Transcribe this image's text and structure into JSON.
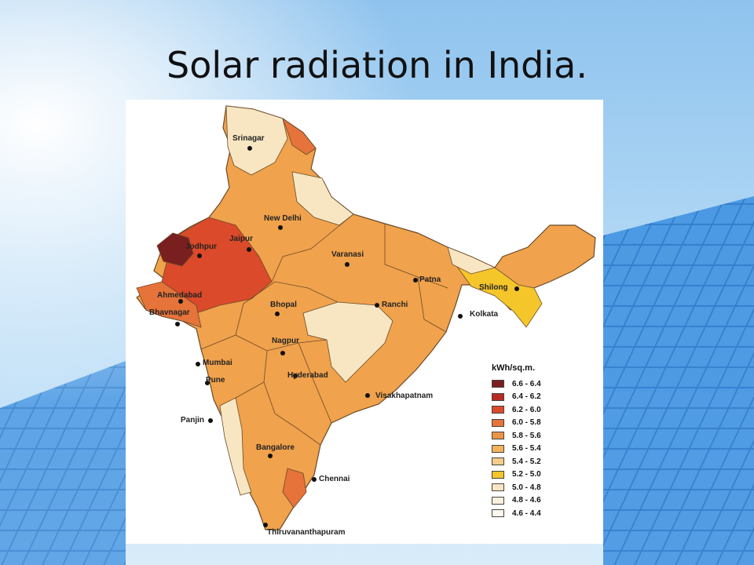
{
  "slide": {
    "title": "Solar radiation in India."
  },
  "map": {
    "cities": [
      {
        "name": "Srinagar"
      },
      {
        "name": "New Delhi"
      },
      {
        "name": "Jodhpur"
      },
      {
        "name": "Jaipur"
      },
      {
        "name": "Varanasi"
      },
      {
        "name": "Patna"
      },
      {
        "name": "Shilong"
      },
      {
        "name": "Ahmedabad"
      },
      {
        "name": "Bhopal"
      },
      {
        "name": "Ranchi"
      },
      {
        "name": "Bhavnagar"
      },
      {
        "name": "Kolkata"
      },
      {
        "name": "Nagpur"
      },
      {
        "name": "Mumbai"
      },
      {
        "name": "Pune"
      },
      {
        "name": "Hyderabad"
      },
      {
        "name": "Visakhapatnam"
      },
      {
        "name": "Panjin"
      },
      {
        "name": "Bangalore"
      },
      {
        "name": "Chennai"
      },
      {
        "name": "Thiruvananthapuram"
      }
    ],
    "legend": {
      "title": "kWh/sq.m.",
      "items": [
        {
          "label": "6.6 - 6.4",
          "color": "#7a1f1f"
        },
        {
          "label": "6.4 - 6.2",
          "color": "#b82a24"
        },
        {
          "label": "6.2 - 6.0",
          "color": "#db4a2a"
        },
        {
          "label": "6.0 - 5.8",
          "color": "#e5733a"
        },
        {
          "label": "5.8 - 5.6",
          "color": "#eb9444"
        },
        {
          "label": "5.6 - 5.4",
          "color": "#f2b35e"
        },
        {
          "label": "5.4 - 5.2",
          "color": "#f5cc8a"
        },
        {
          "label": "5.2 - 5.0",
          "color": "#f5c62a"
        },
        {
          "label": "5.0 - 4.8",
          "color": "#f8e6c2"
        },
        {
          "label": "4.8 - 4.6",
          "color": "#fbf0dc"
        },
        {
          "label": "4.6 - 4.4",
          "color": "#fdf8ee"
        }
      ]
    }
  }
}
